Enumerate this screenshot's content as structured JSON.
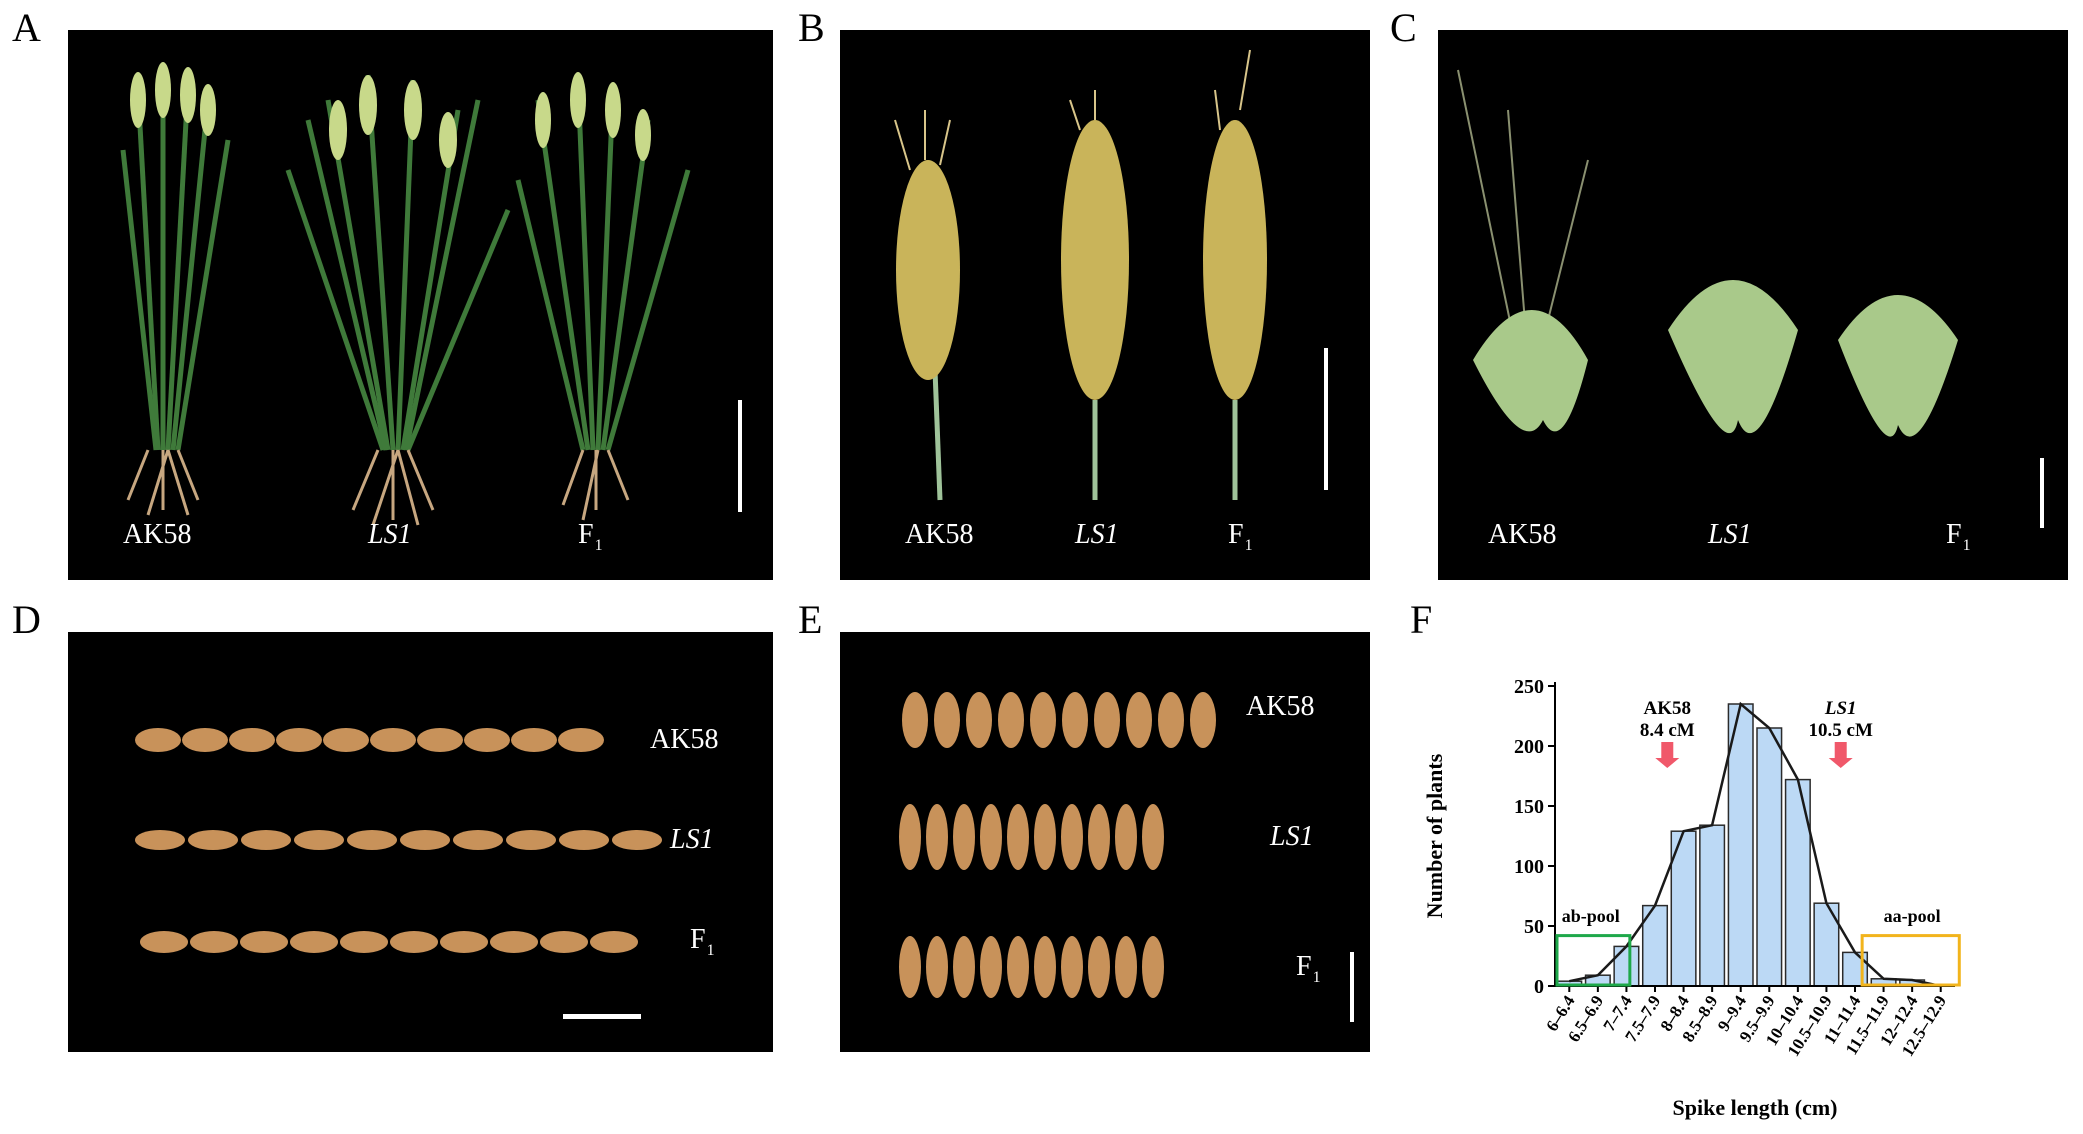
{
  "panels": {
    "A": {
      "label": "A",
      "captions": [
        "AK58",
        "LS1",
        "F",
        "1"
      ]
    },
    "B": {
      "label": "B",
      "captions": [
        "AK58",
        "LS1",
        "F",
        "1"
      ]
    },
    "C": {
      "label": "C",
      "captions": [
        "AK58",
        "LS1",
        "F",
        "1"
      ]
    },
    "D": {
      "label": "D",
      "captions": [
        "AK58",
        "LS1",
        "F",
        "1"
      ]
    },
    "E": {
      "label": "E",
      "captions": [
        "AK58",
        "LS1",
        "F",
        "1"
      ]
    },
    "F": {
      "label": "F"
    }
  },
  "colors": {
    "photo_bg": "#000000",
    "bar_fill": "#bcd9f5",
    "bar_stroke": "#2b2b2b",
    "arrow": "#f0586a",
    "ab_pool_box": "#1ea84a",
    "aa_pool_box": "#f2b41c",
    "grain": "#c8925a",
    "plant_green": "#3f7a3a",
    "spike_yellow": "#c9b45a",
    "spikelet_green": "#a9c98a"
  },
  "chart_data": {
    "type": "bar",
    "title": "",
    "xlabel": "Spike length (cm)",
    "ylabel": "Number of plants",
    "ylim": [
      0,
      250
    ],
    "yticks": [
      "0",
      "50",
      "100",
      "150",
      "200",
      "250"
    ],
    "categories": [
      "6–6.4",
      "6.5–6.9",
      "7–7.4",
      "7.5–7.9",
      "8–8.4",
      "8.5–8.9",
      "9–9.4",
      "9.5–9.9",
      "10–10.4",
      "10.5–10.9",
      "11–11.4",
      "11.5–11.9",
      "12–12.4",
      "12.5–12.9"
    ],
    "values": [
      4,
      9,
      33,
      67,
      129,
      134,
      235,
      215,
      172,
      69,
      28,
      6,
      5,
      0
    ],
    "line_overlay": true,
    "annotations": {
      "ak58_line1": "AK58",
      "ak58_line2": "8.4 cM",
      "ls1_line1": "LS1",
      "ls1_line2": "10.5 cM",
      "ab_pool": "ab-pool",
      "aa_pool": "aa-pool"
    }
  }
}
